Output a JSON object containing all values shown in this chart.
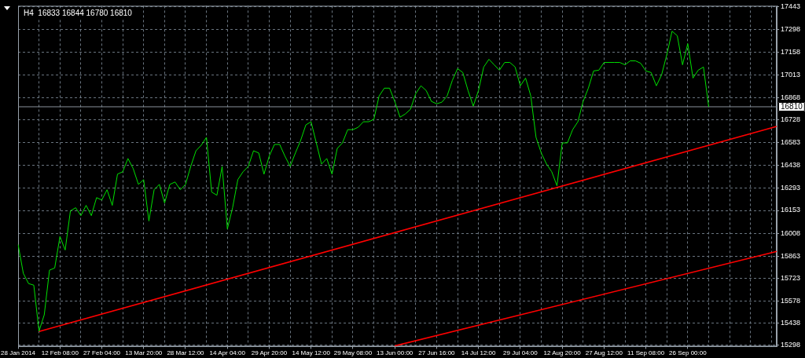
{
  "chart_data": {
    "type": "line",
    "title": "H4  16833 16844 16780 16810",
    "categories": [
      "28 Jan 2014",
      null,
      null,
      null,
      null,
      null,
      null,
      null,
      "12 Feb 08:00",
      null,
      null,
      null,
      null,
      null,
      null,
      null,
      "27 Feb 04:00",
      null,
      null,
      null,
      null,
      null,
      null,
      null,
      "13 Mar 20:00",
      null,
      null,
      null,
      null,
      null,
      null,
      null,
      "28 Mar 12:00",
      null,
      null,
      null,
      null,
      null,
      null,
      null,
      "14 Apr 04:00",
      null,
      null,
      null,
      null,
      null,
      null,
      null,
      "29 Apr 20:00",
      null,
      null,
      null,
      null,
      null,
      null,
      null,
      "14 May 12:00",
      null,
      null,
      null,
      null,
      null,
      null,
      null,
      "29 May 08:00",
      null,
      null,
      null,
      null,
      null,
      null,
      null,
      "13 Jun 00:00",
      null,
      null,
      null,
      null,
      null,
      null,
      null,
      "27 Jun 16:00",
      null,
      null,
      null,
      null,
      null,
      null,
      null,
      "14 Jul 12:00",
      null,
      null,
      null,
      null,
      null,
      null,
      null,
      "29 Jul 04:00",
      null,
      null,
      null,
      null,
      null,
      null,
      null,
      "12 Aug 20:00",
      null,
      null,
      null,
      null,
      null,
      null,
      null,
      "27 Aug 12:00",
      null,
      null,
      null,
      null,
      null,
      null,
      null,
      "11 Sep 08:00",
      null,
      null,
      null,
      null,
      null,
      null,
      null,
      "26 Sep 00:00",
      null,
      null,
      null,
      null,
      null,
      null,
      null,
      null,
      null,
      null,
      null,
      null,
      null,
      null,
      null,
      null,
      null
    ],
    "series": [
      {
        "color": "#00e000",
        "values": [
          15937,
          15754,
          15689,
          15679,
          15387,
          15491,
          15774,
          15788,
          15987,
          15902,
          16150,
          16170,
          16120,
          16185,
          16120,
          16234,
          16219,
          16284,
          16185,
          16383,
          16398,
          16482,
          16418,
          16318,
          16348,
          16086,
          16284,
          16318,
          16200,
          16318,
          16333,
          16284,
          16318,
          16432,
          16531,
          16566,
          16616,
          16269,
          16249,
          16432,
          16036,
          16170,
          16348,
          16398,
          16432,
          16531,
          16517,
          16383,
          16497,
          16571,
          16571,
          16497,
          16432,
          16517,
          16596,
          16695,
          16715,
          16581,
          16447,
          16482,
          16383,
          16546,
          16581,
          16665,
          16665,
          16680,
          16715,
          16715,
          16730,
          16878,
          16928,
          16928,
          16844,
          16744,
          16764,
          16794,
          16893,
          16943,
          16913,
          16844,
          16829,
          16839,
          16878,
          16977,
          17052,
          17027,
          16913,
          16814,
          16913,
          17062,
          17111,
          17076,
          17042,
          17091,
          17091,
          17062,
          16943,
          16992,
          16878,
          16616,
          16517,
          16447,
          16398,
          16309,
          16581,
          16581,
          16665,
          16715,
          16844,
          16928,
          17037,
          17042,
          17091,
          17091,
          17091,
          17091,
          17076,
          17101,
          17101,
          17086,
          17037,
          17027,
          16943,
          17012,
          17141,
          17289,
          17260,
          17076,
          17210,
          16992,
          17042,
          17062,
          16810,
          null,
          null,
          null,
          null,
          null,
          null,
          null,
          null,
          null,
          null,
          null,
          null,
          null
        ]
      },
      {
        "type": "line",
        "color": "#ff0000",
        "values": [
          null,
          null,
          null,
          null,
          15385,
          null,
          null,
          null,
          null,
          null,
          null,
          null,
          null,
          null,
          null,
          null,
          null,
          null,
          null,
          null,
          null,
          null,
          null,
          null,
          null,
          null,
          null,
          null,
          null,
          null,
          null,
          null,
          null,
          null,
          null,
          null,
          null,
          null,
          null,
          null,
          null,
          null,
          null,
          null,
          null,
          null,
          null,
          null,
          null,
          null,
          null,
          null,
          null,
          null,
          null,
          null,
          null,
          null,
          null,
          null,
          null,
          null,
          null,
          null,
          null,
          null,
          null,
          null,
          null,
          null,
          null,
          null,
          null,
          null,
          null,
          null,
          null,
          null,
          null,
          null,
          null,
          null,
          null,
          null,
          null,
          null,
          null,
          null,
          null,
          null,
          null,
          null,
          null,
          null,
          null,
          null,
          null,
          null,
          null,
          null,
          null,
          null,
          null,
          null,
          null,
          null,
          null,
          null,
          null,
          null,
          null,
          null,
          null,
          null,
          null,
          null,
          null,
          null,
          null,
          null,
          null,
          null,
          null,
          null,
          null,
          null,
          null,
          null,
          null,
          null,
          null,
          null,
          null,
          null,
          null,
          null,
          null,
          null,
          null,
          null,
          null,
          null,
          null,
          null,
          null,
          16686
        ]
      },
      {
        "type": "line",
        "color": "#ff0000",
        "values": [
          null,
          null,
          null,
          null,
          null,
          null,
          null,
          null,
          null,
          null,
          null,
          null,
          null,
          null,
          null,
          null,
          null,
          null,
          null,
          null,
          null,
          null,
          null,
          null,
          null,
          null,
          null,
          null,
          null,
          null,
          null,
          null,
          null,
          null,
          null,
          null,
          null,
          null,
          null,
          null,
          null,
          null,
          null,
          null,
          null,
          null,
          null,
          null,
          null,
          null,
          null,
          null,
          null,
          null,
          null,
          null,
          null,
          null,
          null,
          null,
          null,
          null,
          null,
          null,
          null,
          null,
          null,
          null,
          null,
          null,
          null,
          null,
          15294,
          null,
          null,
          null,
          null,
          null,
          null,
          null,
          null,
          null,
          null,
          null,
          null,
          null,
          null,
          null,
          null,
          null,
          null,
          null,
          null,
          null,
          null,
          null,
          null,
          null,
          null,
          null,
          null,
          null,
          null,
          null,
          null,
          null,
          null,
          null,
          null,
          null,
          null,
          null,
          null,
          null,
          null,
          null,
          null,
          null,
          null,
          null,
          null,
          null,
          null,
          null,
          null,
          null,
          null,
          null,
          null,
          null,
          null,
          null,
          null,
          null,
          null,
          null,
          null,
          null,
          null,
          null,
          null,
          null,
          null,
          null,
          null,
          15893
        ]
      }
    ],
    "ylim": [
      15290,
      17450
    ],
    "yticks": [
      15298,
      15438,
      15578,
      15723,
      15863,
      16008,
      16153,
      16293,
      16438,
      16583,
      16728,
      16868,
      17013,
      17158,
      17298,
      17443
    ],
    "grid": true,
    "ref_lines": [
      {
        "axis": "y",
        "value": 16810,
        "label": "16810",
        "color": "#8a939c"
      }
    ]
  }
}
